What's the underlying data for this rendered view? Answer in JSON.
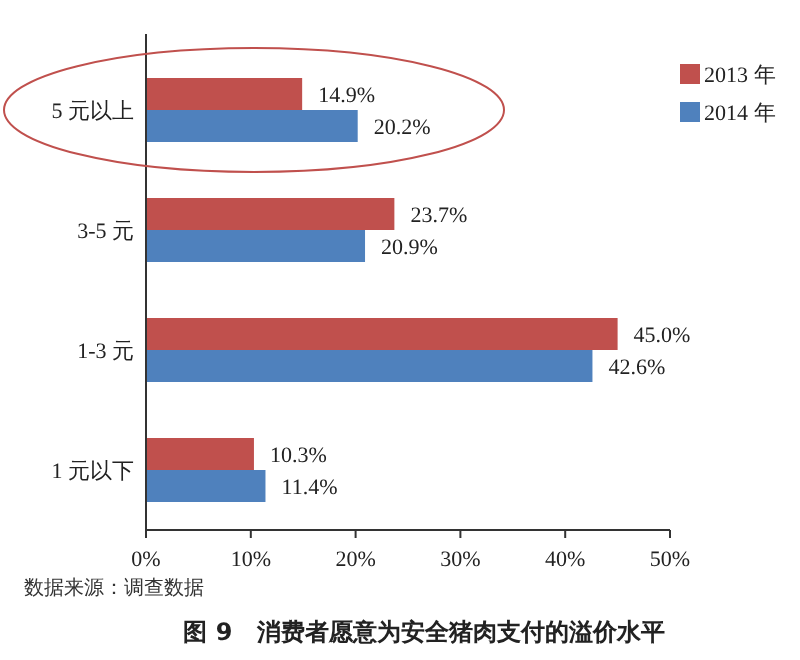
{
  "chart_data": {
    "type": "bar",
    "orientation": "horizontal",
    "title": "图 9　消费者愿意为安全猪肉支付的溢价水平",
    "annotations": [
      "数据来源：调查数据"
    ],
    "categories": [
      "5 元以上",
      "3-5 元",
      "1-3 元",
      "1 元以下"
    ],
    "series": [
      {
        "name": "2013 年",
        "color": "#c0504d",
        "values": [
          14.9,
          23.7,
          45.0,
          10.3
        ],
        "value_labels": [
          "14.9%",
          "23.7%",
          "45.0%",
          "10.3%"
        ]
      },
      {
        "name": "2014 年",
        "color": "#4f81bd",
        "values": [
          20.2,
          20.9,
          42.6,
          11.4
        ],
        "value_labels": [
          "20.2%",
          "20.9%",
          "42.6%",
          "11.4%"
        ]
      }
    ],
    "xlim": [
      0,
      50
    ],
    "xticks": [
      {
        "value": 0,
        "label": "0%"
      },
      {
        "value": 10,
        "label": "10%"
      },
      {
        "value": 20,
        "label": "20%"
      },
      {
        "value": 30,
        "label": "30%"
      },
      {
        "value": 40,
        "label": "40%"
      },
      {
        "value": 50,
        "label": "50%"
      }
    ],
    "grid": false,
    "legend": "right"
  }
}
